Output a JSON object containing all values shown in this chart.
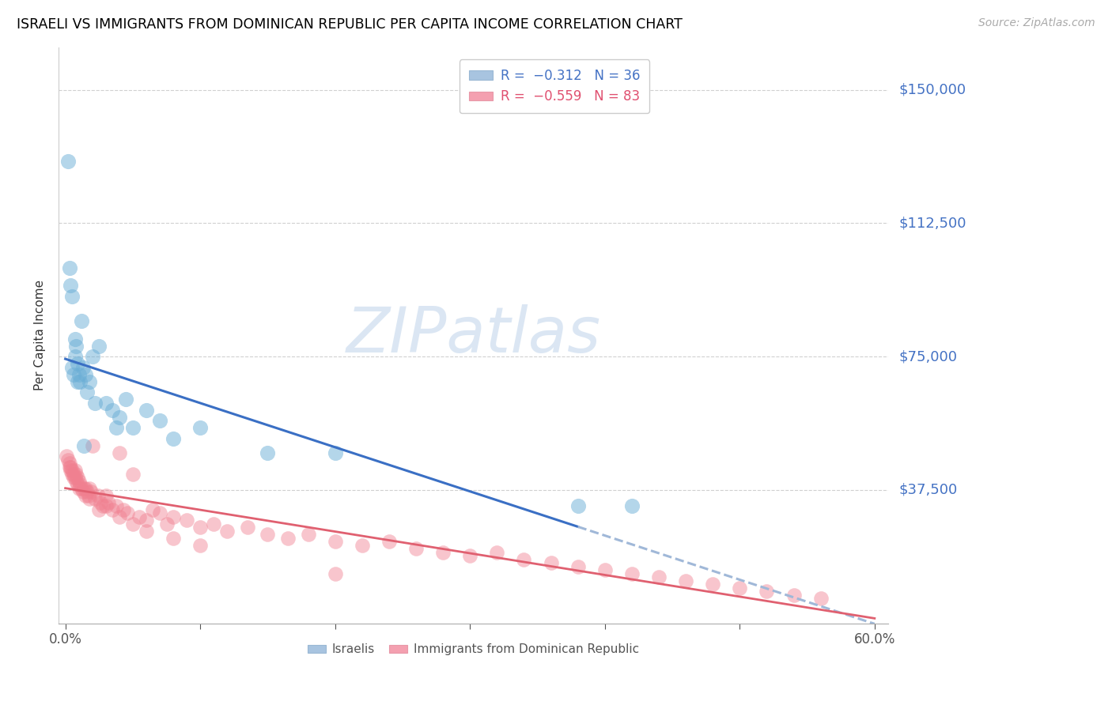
{
  "title": "ISRAELI VS IMMIGRANTS FROM DOMINICAN REPUBLIC PER CAPITA INCOME CORRELATION CHART",
  "source": "Source: ZipAtlas.com",
  "ylabel": "Per Capita Income",
  "ytick_labels": [
    "$150,000",
    "$112,500",
    "$75,000",
    "$37,500"
  ],
  "ytick_values": [
    150000,
    112500,
    75000,
    37500
  ],
  "ylim": [
    0,
    162000
  ],
  "xlim": [
    -0.005,
    0.61
  ],
  "watermark": "ZIPatlas",
  "blue_color": "#6aaed6",
  "pink_color": "#f08090",
  "blue_line_color": "#3a6fc4",
  "pink_line_color": "#e06070",
  "dashed_line_color": "#a0b8d8",
  "israelis_x": [
    0.002,
    0.003,
    0.004,
    0.005,
    0.005,
    0.006,
    0.007,
    0.007,
    0.008,
    0.009,
    0.009,
    0.01,
    0.011,
    0.012,
    0.013,
    0.015,
    0.016,
    0.018,
    0.02,
    0.022,
    0.025,
    0.03,
    0.035,
    0.038,
    0.04,
    0.045,
    0.05,
    0.06,
    0.07,
    0.08,
    0.1,
    0.15,
    0.2,
    0.38,
    0.42,
    0.014
  ],
  "israelis_y": [
    130000,
    100000,
    95000,
    72000,
    92000,
    70000,
    80000,
    75000,
    78000,
    68000,
    73000,
    70000,
    68000,
    85000,
    72000,
    70000,
    65000,
    68000,
    75000,
    62000,
    78000,
    62000,
    60000,
    55000,
    58000,
    63000,
    55000,
    60000,
    57000,
    52000,
    55000,
    48000,
    48000,
    33000,
    33000,
    50000
  ],
  "dominican_x": [
    0.001,
    0.002,
    0.003,
    0.003,
    0.004,
    0.004,
    0.005,
    0.005,
    0.006,
    0.006,
    0.007,
    0.007,
    0.008,
    0.008,
    0.009,
    0.009,
    0.01,
    0.01,
    0.011,
    0.012,
    0.013,
    0.014,
    0.015,
    0.015,
    0.016,
    0.017,
    0.018,
    0.019,
    0.02,
    0.022,
    0.024,
    0.026,
    0.028,
    0.03,
    0.032,
    0.035,
    0.038,
    0.04,
    0.043,
    0.046,
    0.05,
    0.055,
    0.06,
    0.065,
    0.07,
    0.075,
    0.08,
    0.09,
    0.1,
    0.11,
    0.12,
    0.135,
    0.15,
    0.165,
    0.18,
    0.2,
    0.22,
    0.24,
    0.26,
    0.28,
    0.3,
    0.32,
    0.34,
    0.36,
    0.38,
    0.4,
    0.42,
    0.44,
    0.46,
    0.48,
    0.5,
    0.52,
    0.54,
    0.56,
    0.018,
    0.025,
    0.03,
    0.04,
    0.05,
    0.06,
    0.08,
    0.1,
    0.2
  ],
  "dominican_y": [
    47000,
    46000,
    45000,
    44000,
    44000,
    43000,
    43000,
    42000,
    42000,
    41000,
    41000,
    43000,
    40000,
    42000,
    39000,
    41000,
    40000,
    38000,
    39000,
    38000,
    37000,
    38000,
    38000,
    36000,
    37000,
    36000,
    35000,
    37000,
    50000,
    35000,
    36000,
    34000,
    33000,
    36000,
    34000,
    32000,
    33000,
    48000,
    32000,
    31000,
    42000,
    30000,
    29000,
    32000,
    31000,
    28000,
    30000,
    29000,
    27000,
    28000,
    26000,
    27000,
    25000,
    24000,
    25000,
    23000,
    22000,
    23000,
    21000,
    20000,
    19000,
    20000,
    18000,
    17000,
    16000,
    15000,
    14000,
    13000,
    12000,
    11000,
    10000,
    9000,
    8000,
    7000,
    38000,
    32000,
    33000,
    30000,
    28000,
    26000,
    24000,
    22000,
    14000
  ]
}
